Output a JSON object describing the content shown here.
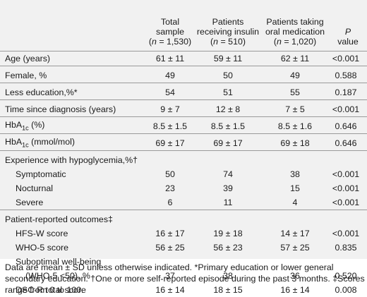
{
  "headers": {
    "total_l1": "Total",
    "total_l2": "sample",
    "total_l3": "(n = 1,530)",
    "insulin_l1": "Patients",
    "insulin_l2": "receiving insulin",
    "insulin_l3": "(n = 510)",
    "oral_l1": "Patients taking",
    "oral_l2": "oral medication",
    "oral_l3": "(n = 1,020)",
    "p_l1": "P",
    "p_l2": "value"
  },
  "rows": {
    "age": {
      "label": "Age (years)",
      "total": "61 ± 11",
      "insulin": "59 ± 11",
      "oral": "62 ± 11",
      "p": "<0.001"
    },
    "female": {
      "label": "Female, %",
      "total": "49",
      "insulin": "50",
      "oral": "49",
      "p": "0.588"
    },
    "education": {
      "label": "Less education,%*",
      "total": "54",
      "insulin": "51",
      "oral": "55",
      "p": "0.187"
    },
    "time": {
      "label": "Time since diagnosis (years)",
      "total": "9 ± 7",
      "insulin": "12 ± 8",
      "oral": "7 ± 5",
      "p": "<0.001"
    },
    "hba1c_pct": {
      "label_pre": "HbA",
      "label_sub": "1c",
      "label_post": " (%)",
      "total": "8.5 ± 1.5",
      "insulin": "8.5 ± 1.5",
      "oral": "8.5 ± 1.6",
      "p": "0.646"
    },
    "hba1c_mmol": {
      "label_pre": "HbA",
      "label_sub": "1c",
      "label_post": " (mmol/mol)",
      "total": "69 ± 17",
      "insulin": "69 ± 17",
      "oral": "69 ± 18",
      "p": "0.646"
    },
    "hypo_head": {
      "label": "Experience with hypoglycemia,%†"
    },
    "symptomatic": {
      "label": "Symptomatic",
      "total": "50",
      "insulin": "74",
      "oral": "38",
      "p": "<0.001"
    },
    "nocturnal": {
      "label": "Nocturnal",
      "total": "23",
      "insulin": "39",
      "oral": "15",
      "p": "<0.001"
    },
    "severe": {
      "label": "Severe",
      "total": "6",
      "insulin": "11",
      "oral": "4",
      "p": "<0.001"
    },
    "pro_head": {
      "label": "Patient-reported outcomes‡"
    },
    "hfs": {
      "label": "HFS-W score",
      "total": "16 ± 17",
      "insulin": "19 ± 18",
      "oral": "14 ± 17",
      "p": "<0.001"
    },
    "who5": {
      "label": "WHO-5 score",
      "total": "56 ± 25",
      "insulin": "56 ± 23",
      "oral": "57 ± 25",
      "p": "0.835"
    },
    "subopt": {
      "label_l1": "Suboptimal well-being",
      "label_l2": "(WHO-5 <50), %",
      "total": "37",
      "insulin": "38",
      "oral": "36",
      "p": "0.520"
    },
    "dscr": {
      "label": "DSC-R total score",
      "total": "16 ± 14",
      "insulin": "18 ± 15",
      "oral": "16 ± 14",
      "p": "0.008"
    }
  },
  "footnote": "Data are mean ± SD unless otherwise indicated. *Primary education or lower general secondary education. †One or more self-reported episode during the past 3 months. ‡Scores range from 0 to 100."
}
